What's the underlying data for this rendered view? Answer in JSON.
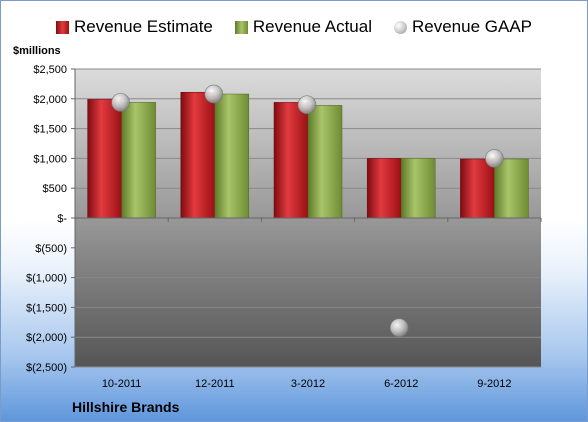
{
  "legend": {
    "estimate": "Revenue Estimate",
    "actual": "Revenue Actual",
    "gaap": "Revenue GAAP"
  },
  "unit_label": "$millions",
  "company_label": "Hillshire Brands",
  "colors": {
    "estimate": "#c0161c",
    "actual": "#86a445",
    "gaap": "#b8b8b8",
    "plot_top": "#dcdcdc",
    "plot_bottom": "#555555"
  },
  "chart_data": {
    "type": "bar",
    "title": "",
    "xlabel": "",
    "ylabel": "$millions",
    "categories": [
      "10-2011",
      "12-2011",
      "3-2012",
      "6-2012",
      "9-2012"
    ],
    "series": [
      {
        "name": "Revenue Estimate",
        "type": "bar",
        "values": [
          1990,
          2110,
          1940,
          1000,
          990
        ]
      },
      {
        "name": "Revenue Actual",
        "type": "bar",
        "values": [
          1940,
          2080,
          1890,
          1000,
          990
        ]
      },
      {
        "name": "Revenue GAAP",
        "type": "scatter",
        "values": [
          1940,
          2080,
          1900,
          -1840,
          1000
        ]
      }
    ],
    "ylim": [
      -2500,
      2500
    ],
    "yticks": [
      2500,
      2000,
      1500,
      1000,
      500,
      0,
      -500,
      -1000,
      -1500,
      -2000,
      -2500
    ],
    "ytick_labels": [
      "$2,500",
      "$2,000",
      "$1,500",
      "$1,000",
      "$500",
      "$-",
      "$(500)",
      "$(1,000)",
      "$(1,500)",
      "$(2,000)",
      "$(2,500)"
    ],
    "grid": true,
    "legend_position": "top"
  }
}
